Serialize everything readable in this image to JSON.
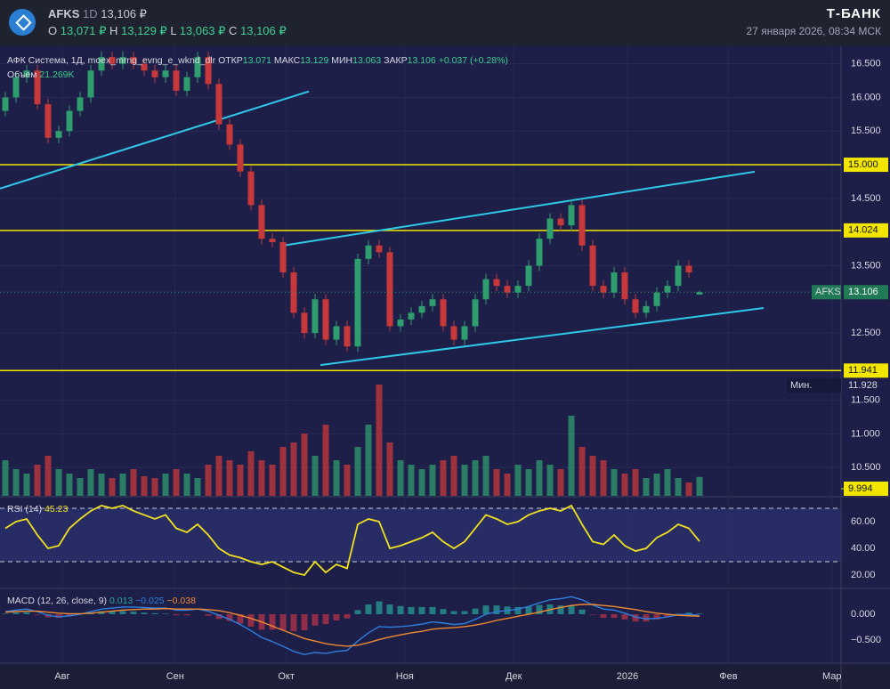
{
  "header": {
    "symbol": "AFKS",
    "interval": "1D",
    "price": "13,106 ₽",
    "ohlc": [
      [
        "O",
        "13,071 ₽"
      ],
      [
        "H",
        "13,129 ₽"
      ],
      [
        "L",
        "13,063 ₽"
      ],
      [
        "C",
        "13,106 ₽"
      ]
    ],
    "brand": "Т-БАНК",
    "datetime": "27 января 2026, 08:34 МСК"
  },
  "chart_data": {
    "type": "candlestick",
    "title": "АФК Система, 1Д, moex_mrng_evng_e_wknd_dlr",
    "stats": [
      [
        "ОТКР",
        "13.071"
      ],
      [
        "МАКС",
        "13.129"
      ],
      [
        "МИН",
        "13.063"
      ],
      [
        "ЗАКР",
        "13.106"
      ]
    ],
    "change": "+0.037 (+0.28%)",
    "up_color": "#2f9e6e",
    "down_color": "#c8383a",
    "open": [
      15.8,
      16.0,
      16.3,
      16.4,
      15.9,
      15.4,
      15.5,
      15.8,
      16.0,
      16.4,
      16.6,
      16.5,
      16.6,
      16.5,
      16.4,
      16.3,
      16.4,
      16.1,
      16.3,
      16.6,
      16.2,
      15.6,
      15.3,
      14.9,
      14.4,
      13.9,
      13.85,
      13.4,
      12.8,
      12.5,
      13.0,
      12.4,
      12.6,
      12.3,
      13.6,
      13.8,
      13.7,
      12.6,
      12.7,
      12.8,
      12.9,
      13.0,
      12.6,
      12.4,
      12.6,
      13.0,
      13.3,
      13.2,
      13.1,
      13.2,
      13.5,
      13.9,
      14.2,
      14.1,
      14.4,
      13.8,
      13.2,
      13.1,
      13.4,
      13.0,
      12.8,
      12.9,
      13.1,
      13.2,
      13.5,
      13.071
    ],
    "high": [
      16.08,
      16.38,
      16.48,
      16.48,
      15.98,
      15.58,
      15.88,
      16.08,
      16.48,
      16.68,
      16.68,
      16.68,
      16.68,
      16.58,
      16.48,
      16.48,
      16.48,
      16.38,
      16.68,
      16.68,
      16.28,
      15.68,
      15.38,
      14.98,
      14.48,
      13.98,
      13.93,
      13.48,
      12.88,
      13.08,
      13.08,
      12.68,
      12.68,
      13.68,
      13.88,
      13.88,
      13.78,
      12.78,
      12.88,
      12.98,
      13.08,
      13.08,
      12.68,
      12.68,
      13.08,
      13.38,
      13.38,
      13.28,
      13.28,
      13.58,
      13.98,
      14.28,
      14.28,
      14.48,
      14.48,
      13.88,
      13.28,
      13.48,
      13.48,
      13.08,
      12.98,
      13.18,
      13.28,
      13.58,
      13.58,
      13.129
    ],
    "low": [
      15.72,
      15.92,
      16.22,
      15.82,
      15.32,
      15.32,
      15.42,
      15.72,
      15.92,
      16.32,
      16.42,
      16.42,
      16.42,
      16.32,
      16.22,
      16.22,
      16.02,
      16.02,
      16.22,
      16.12,
      15.52,
      15.22,
      14.82,
      14.32,
      13.82,
      13.77,
      13.32,
      12.72,
      12.42,
      12.42,
      12.32,
      12.32,
      12.22,
      12.22,
      13.52,
      13.62,
      12.52,
      12.52,
      12.62,
      12.72,
      12.82,
      12.52,
      12.32,
      12.32,
      12.52,
      12.92,
      13.12,
      13.02,
      13.02,
      13.12,
      13.42,
      13.82,
      14.02,
      14.02,
      13.72,
      13.12,
      13.02,
      13.02,
      12.92,
      12.72,
      12.72,
      12.82,
      13.02,
      13.12,
      13.32,
      13.063
    ],
    "close": [
      16.0,
      16.3,
      16.4,
      15.9,
      15.4,
      15.5,
      15.8,
      16.0,
      16.4,
      16.6,
      16.5,
      16.6,
      16.5,
      16.4,
      16.3,
      16.4,
      16.1,
      16.3,
      16.6,
      16.2,
      15.6,
      15.3,
      14.9,
      14.4,
      13.9,
      13.85,
      13.4,
      12.8,
      12.5,
      13.0,
      12.4,
      12.6,
      12.3,
      13.6,
      13.8,
      13.7,
      12.6,
      12.7,
      12.8,
      12.9,
      13.0,
      12.6,
      12.4,
      12.6,
      13.0,
      13.3,
      13.2,
      13.1,
      13.2,
      13.5,
      13.9,
      14.2,
      14.1,
      14.4,
      13.8,
      13.2,
      13.1,
      13.4,
      13.0,
      12.8,
      12.9,
      13.1,
      13.2,
      13.5,
      13.4,
      13.106
    ],
    "xlim": [
      -0.5,
      78.25
    ],
    "xticks": [
      {
        "value": 5.33,
        "label": "Авг"
      },
      {
        "value": 15.9,
        "label": "Сен"
      },
      {
        "value": 26.3,
        "label": "Окт"
      },
      {
        "value": 37.4,
        "label": "Ноя"
      },
      {
        "value": 47.6,
        "label": "Дек"
      },
      {
        "value": 58.25,
        "label": "2026"
      },
      {
        "value": 67.7,
        "label": "Фев"
      },
      {
        "value": 77.4,
        "label": "Мар"
      }
    ],
    "ylim": [
      10.08,
      16.76
    ],
    "yticks": [
      {
        "value": 16.5,
        "label": "16.500"
      },
      {
        "value": 16,
        "label": "16.000"
      },
      {
        "value": 15.5,
        "label": "15.500"
      },
      {
        "value": 14.5,
        "label": "14.500"
      },
      {
        "value": 13.5,
        "label": "13.500"
      },
      {
        "value": 12.5,
        "label": "12.500"
      },
      {
        "value": 11.5,
        "label": "11.500"
      },
      {
        "value": 11,
        "label": "11.000"
      },
      {
        "value": 10.5,
        "label": "10.500"
      }
    ],
    "levels": [
      {
        "value": 15,
        "label": "15.000"
      },
      {
        "value": 14.024,
        "label": "14.024"
      },
      {
        "value": 11.941,
        "label": "11.941"
      },
      {
        "value": 9.994,
        "label": "9.994"
      }
    ],
    "level_color": "#f2e600",
    "last_price": {
      "name": "AFKS",
      "value": 13.106,
      "label": "13.106"
    },
    "min_price": {
      "name": "Мин.",
      "value": 11.928,
      "label": "11.928"
    },
    "trendlines": [
      {
        "x": [
          -0.5,
          28.42
        ],
        "y": [
          14.646,
          16.089
        ]
      },
      {
        "x": [
          26,
          70.17
        ],
        "y": [
          13.798,
          14.897
        ]
      },
      {
        "x": [
          29.5,
          71
        ],
        "y": [
          12.023,
          12.871
        ]
      }
    ],
    "trend_color": "#2fc8e8",
    "volume": {
      "name": "Объем",
      "last_label": "21.269K",
      "values": [
        40,
        30,
        25,
        35,
        45,
        30,
        25,
        20,
        30,
        25,
        20,
        25,
        30,
        22,
        20,
        25,
        30,
        25,
        20,
        35,
        45,
        40,
        35,
        50,
        40,
        35,
        55,
        60,
        70,
        45,
        80,
        40,
        35,
        55,
        80,
        125,
        60,
        40,
        35,
        30,
        35,
        40,
        45,
        35,
        40,
        45,
        30,
        25,
        35,
        30,
        40,
        35,
        30,
        90,
        55,
        45,
        40,
        30,
        25,
        30,
        20,
        25,
        30,
        20,
        15,
        21.269
      ]
    },
    "rsi": {
      "name": "RSI (14)",
      "last_label": "45.23",
      "color": "#f0e020",
      "values": [
        55,
        60,
        62,
        50,
        40,
        42,
        55,
        62,
        68,
        72,
        70,
        72,
        68,
        65,
        62,
        65,
        55,
        52,
        58,
        50,
        40,
        35,
        33,
        30,
        28,
        30,
        26,
        22,
        20,
        30,
        22,
        28,
        25,
        58,
        62,
        60,
        40,
        42,
        45,
        48,
        52,
        45,
        40,
        45,
        55,
        65,
        62,
        58,
        60,
        65,
        68,
        70,
        68,
        72,
        58,
        45,
        43,
        50,
        42,
        38,
        40,
        48,
        52,
        58,
        55,
        45.23
      ],
      "ylim": [
        10.7,
        77.3
      ],
      "yticks": [
        {
          "value": 60,
          "label": "60.00"
        },
        {
          "value": 40,
          "label": "40.00"
        },
        {
          "value": 20,
          "label": "20.00"
        }
      ],
      "bands": [
        30,
        70
      ]
    },
    "macd": {
      "name": "MACD (12, 26, close, 9)",
      "ylim": [
        -0.948,
        0.483
      ],
      "yticks": [
        {
          "value": 0,
          "label": "0.000"
        },
        {
          "value": -0.5,
          "label": "−0.500"
        }
      ],
      "series": [
        {
          "name": "hist",
          "label": "0.013",
          "color": "#26a69a",
          "down_color": "#c2334a",
          "values": [
            0.01,
            0.03,
            0.04,
            -0.01,
            -0.06,
            -0.07,
            -0.04,
            -0.01,
            0.03,
            0.06,
            0.06,
            0.06,
            0.05,
            0.03,
            0.02,
            0.01,
            -0.02,
            -0.02,
            0,
            -0.03,
            -0.09,
            -0.13,
            -0.18,
            -0.24,
            -0.3,
            -0.3,
            -0.31,
            -0.33,
            -0.31,
            -0.22,
            -0.19,
            -0.12,
            -0.08,
            0.08,
            0.19,
            0.25,
            0.19,
            0.16,
            0.14,
            0.14,
            0.14,
            0.1,
            0.06,
            0.06,
            0.11,
            0.17,
            0.17,
            0.15,
            0.14,
            0.15,
            0.18,
            0.19,
            0.17,
            0.17,
            0.09,
            -0.01,
            -0.07,
            -0.07,
            -0.1,
            -0.14,
            -0.14,
            -0.1,
            -0.05,
            0.01,
            0.03,
            0.013
          ]
        },
        {
          "name": "macd",
          "label": "−0.025",
          "color": "#2f7fe0",
          "values": [
            0.05,
            0.08,
            0.1,
            0.05,
            -0.02,
            -0.05,
            -0.03,
            0.0,
            0.05,
            0.1,
            0.12,
            0.14,
            0.14,
            0.13,
            0.12,
            0.12,
            0.08,
            0.08,
            0.1,
            0.06,
            -0.02,
            -0.1,
            -0.2,
            -0.32,
            -0.45,
            -0.53,
            -0.62,
            -0.72,
            -0.78,
            -0.74,
            -0.76,
            -0.72,
            -0.7,
            -0.52,
            -0.36,
            -0.24,
            -0.25,
            -0.24,
            -0.22,
            -0.19,
            -0.15,
            -0.17,
            -0.2,
            -0.18,
            -0.1,
            0.0,
            0.05,
            0.07,
            0.1,
            0.15,
            0.22,
            0.28,
            0.3,
            0.34,
            0.28,
            0.18,
            0.1,
            0.08,
            0.02,
            -0.05,
            -0.09,
            -0.08,
            -0.05,
            -0.01,
            0.0,
            -0.025
          ]
        },
        {
          "name": "signal",
          "label": "−0.038",
          "color": "#f08a30",
          "values": [
            0.04,
            0.05,
            0.06,
            0.06,
            0.04,
            0.02,
            0.01,
            0.01,
            0.02,
            0.04,
            0.06,
            0.08,
            0.09,
            0.1,
            0.1,
            0.11,
            0.1,
            0.1,
            0.1,
            0.09,
            0.07,
            0.03,
            -0.02,
            -0.08,
            -0.15,
            -0.23,
            -0.31,
            -0.39,
            -0.47,
            -0.52,
            -0.57,
            -0.6,
            -0.62,
            -0.6,
            -0.55,
            -0.49,
            -0.44,
            -0.4,
            -0.36,
            -0.33,
            -0.29,
            -0.27,
            -0.26,
            -0.24,
            -0.21,
            -0.17,
            -0.12,
            -0.08,
            -0.04,
            0.0,
            0.04,
            0.09,
            0.13,
            0.17,
            0.19,
            0.19,
            0.17,
            0.15,
            0.12,
            0.09,
            0.05,
            0.02,
            0.0,
            -0.02,
            -0.03,
            -0.038
          ]
        }
      ]
    }
  }
}
